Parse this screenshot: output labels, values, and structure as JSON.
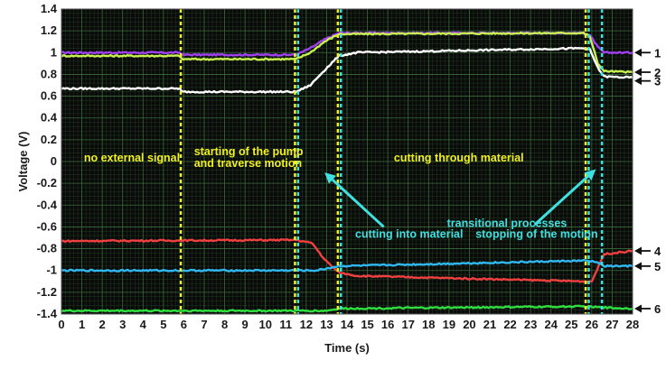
{
  "chart_data": {
    "type": "line",
    "xlabel": "Time (s)",
    "ylabel": "Voltage (V)",
    "xlim": [
      0,
      28
    ],
    "ylim": [
      -1.4,
      1.4
    ],
    "x_ticks": [
      "0",
      "1",
      "2",
      "3",
      "4",
      "5",
      "6",
      "7",
      "8",
      "9",
      "10",
      "11",
      "12",
      "13",
      "14",
      "15",
      "16",
      "17",
      "18",
      "19",
      "20",
      "21",
      "22",
      "23",
      "24",
      "25",
      "26",
      "27",
      "28"
    ],
    "y_ticks": [
      "1.4",
      "1.2",
      "1",
      "0.8",
      "0.6",
      "0.4",
      "0.2",
      "0",
      "-0.2",
      "-0.4",
      "-0.6",
      "-0.8",
      "-1",
      "-1.2",
      "-1.4"
    ],
    "grid": true,
    "background": "#0a0a0a",
    "series": [
      {
        "color": "#a040f0",
        "x": [
          0,
          5.8,
          5.9,
          11.5,
          12.2,
          12.9,
          13.6,
          25.6,
          25.9,
          26.3,
          26.6,
          28
        ],
        "y": [
          1.0,
          1.0,
          0.98,
          0.98,
          1.04,
          1.12,
          1.18,
          1.18,
          1.16,
          1.05,
          1.0,
          1.0
        ]
      },
      {
        "color": "#c8f050",
        "x": [
          0,
          5.8,
          5.9,
          11.5,
          12.2,
          12.9,
          13.6,
          25.6,
          25.9,
          26.3,
          26.6,
          28
        ],
        "y": [
          0.97,
          0.97,
          0.94,
          0.94,
          1.0,
          1.1,
          1.17,
          1.18,
          1.15,
          0.9,
          0.83,
          0.82
        ]
      },
      {
        "color": "#ffffff",
        "x": [
          0,
          5.8,
          5.9,
          11.5,
          12.2,
          12.8,
          13.6,
          14.5,
          25.6,
          25.9,
          26.3,
          26.6,
          28
        ],
        "y": [
          0.67,
          0.67,
          0.64,
          0.64,
          0.7,
          0.82,
          0.97,
          1.0,
          1.04,
          1.03,
          0.86,
          0.78,
          0.77
        ]
      },
      {
        "color": "#f04040",
        "x": [
          0,
          11.5,
          12.3,
          12.9,
          13.6,
          14.5,
          25.6,
          26.0,
          26.6,
          28
        ],
        "y": [
          -0.73,
          -0.72,
          -0.75,
          -0.9,
          -1.02,
          -1.05,
          -1.1,
          -1.1,
          -0.85,
          -0.82
        ]
      },
      {
        "color": "#30b8f0",
        "x": [
          0,
          11.5,
          12.5,
          13.6,
          25.6,
          26.2,
          26.6,
          28
        ],
        "y": [
          -1.0,
          -1.0,
          -1.0,
          -0.96,
          -0.91,
          -0.92,
          -0.96,
          -0.96
        ]
      },
      {
        "color": "#30e040",
        "x": [
          0,
          13.0,
          13.6,
          25.6,
          26.6,
          28
        ],
        "y": [
          -1.37,
          -1.37,
          -1.35,
          -1.33,
          -1.34,
          -1.35
        ]
      }
    ],
    "vlines": [
      {
        "x": 5.85,
        "color": "#f0f020"
      },
      {
        "x": 11.45,
        "color": "#f0f020"
      },
      {
        "x": 11.6,
        "color": "#40e0e0"
      },
      {
        "x": 13.55,
        "color": "#f0f020"
      },
      {
        "x": 13.7,
        "color": "#40e0e0"
      },
      {
        "x": 25.7,
        "color": "#f0f020"
      },
      {
        "x": 25.85,
        "color": "#40e0e0"
      },
      {
        "x": 26.5,
        "color": "#40e0e0"
      }
    ],
    "annotations": [
      {
        "text": "no external signal",
        "x": 1.1,
        "y": 0.0,
        "color": "#f0f020"
      },
      {
        "text": "starting of the pump",
        "x": 6.5,
        "y": 0.06,
        "color": "#f0f020"
      },
      {
        "text": "and traverse motion",
        "x": 6.5,
        "y": -0.05,
        "color": "#f0f020"
      },
      {
        "text": "cutting through material",
        "x": 16.3,
        "y": 0.0,
        "color": "#f0f020"
      },
      {
        "text": "transitional processes",
        "x": 18.9,
        "y": -0.6,
        "color": "#40e0e0"
      },
      {
        "text": "cutting into material",
        "x": 14.4,
        "y": -0.7,
        "color": "#40e0e0"
      },
      {
        "text": "stopping of the motion",
        "x": 20.3,
        "y": -0.7,
        "color": "#40e0e0"
      }
    ],
    "arrows": [
      {
        "from": [
          15.8,
          -0.6
        ],
        "to": [
          12.9,
          -0.1
        ],
        "color": "#40e0e0"
      },
      {
        "from": [
          23.2,
          -0.58
        ],
        "to": [
          26.2,
          -0.07
        ],
        "color": "#40e0e0"
      }
    ],
    "side_labels": [
      {
        "text": "1",
        "y": 1.0
      },
      {
        "text": "2",
        "y": 0.82
      },
      {
        "text": "3",
        "y": 0.74
      },
      {
        "text": "4",
        "y": -0.82
      },
      {
        "text": "5",
        "y": -0.96
      },
      {
        "text": "6",
        "y": -1.35
      }
    ]
  }
}
